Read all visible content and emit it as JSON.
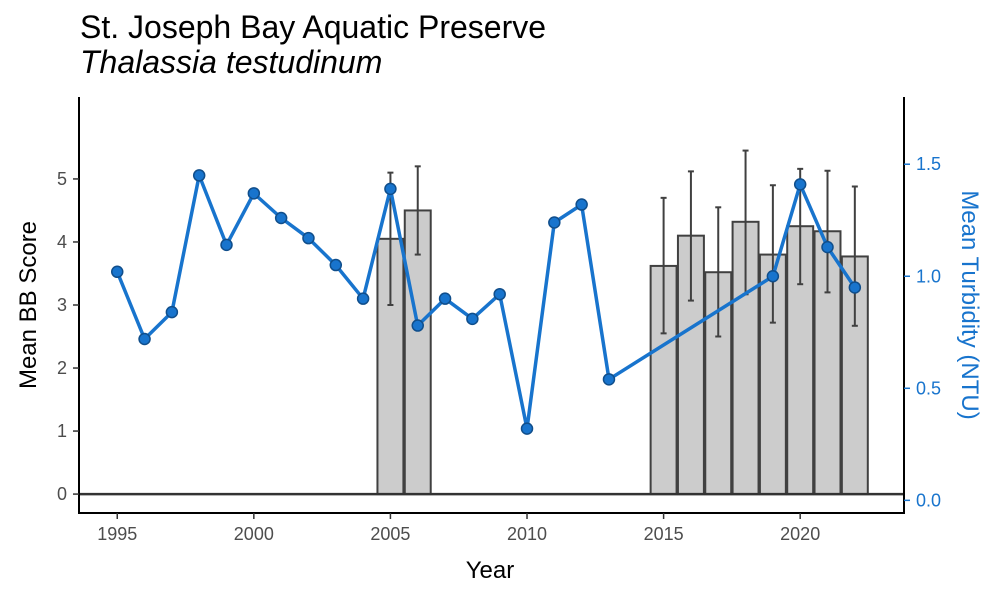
{
  "chart_data": {
    "type": "bar",
    "title": "St. Joseph Bay Aquatic Preserve",
    "subtitle": "Thalassia testudinum",
    "xlabel": "Year",
    "ylabel": "Mean BB Score",
    "y2label": "Mean Turbidity (NTU)",
    "xlim": [
      1993.6,
      2023.8
    ],
    "ylim": [
      -0.3,
      6.3
    ],
    "y2lim": [
      -0.0565,
      1.8
    ],
    "x_ticks": [
      "1995",
      "2000",
      "2005",
      "2010",
      "2015",
      "2020"
    ],
    "y_ticks": [
      "0",
      "1",
      "2",
      "3",
      "4",
      "5"
    ],
    "y2_ticks": [
      "0.0",
      "0.5",
      "1.0",
      "1.5"
    ],
    "grid": false,
    "series": [
      {
        "type": "bar",
        "axis": "left",
        "data": [
          {
            "x": 2005,
            "y": 4.05,
            "err_low": 3.0,
            "err_high": 5.1
          },
          {
            "x": 2006,
            "y": 4.5,
            "err_low": 3.8,
            "err_high": 5.2
          },
          {
            "x": 2015,
            "y": 3.62,
            "err_low": 2.55,
            "err_high": 4.7
          },
          {
            "x": 2016,
            "y": 4.1,
            "err_low": 3.07,
            "err_high": 5.12
          },
          {
            "x": 2017,
            "y": 3.52,
            "err_low": 2.5,
            "err_high": 4.55
          },
          {
            "x": 2018,
            "y": 4.32,
            "err_low": 3.17,
            "err_high": 5.45
          },
          {
            "x": 2019,
            "y": 3.8,
            "err_low": 2.72,
            "err_high": 4.9
          },
          {
            "x": 2020,
            "y": 4.25,
            "err_low": 3.33,
            "err_high": 5.16
          },
          {
            "x": 2021,
            "y": 4.17,
            "err_low": 3.2,
            "err_high": 5.13
          },
          {
            "x": 2022,
            "y": 3.77,
            "err_low": 2.67,
            "err_high": 4.88
          }
        ]
      },
      {
        "type": "line",
        "axis": "right",
        "x": [
          1995,
          1996,
          1997,
          1998,
          1999,
          2000,
          2001,
          2002,
          2003,
          2004,
          2005,
          2006,
          2007,
          2008,
          2009,
          2010,
          2011,
          2012,
          2013,
          2019,
          2020,
          2021,
          2022
        ],
        "y": [
          1.02,
          0.72,
          0.84,
          1.45,
          1.14,
          1.37,
          1.26,
          1.17,
          1.05,
          0.9,
          1.39,
          0.78,
          0.9,
          0.81,
          0.92,
          0.32,
          1.24,
          1.32,
          0.54,
          1.0,
          1.41,
          1.13,
          0.95
        ]
      }
    ]
  },
  "colors": {
    "bar_fill": "#cccccc",
    "bar_stroke": "#404040",
    "line": "#1874cd",
    "point_fill": "#1874cd",
    "point_stroke": "#104e8b",
    "axis": "#000000",
    "zero_line": "#333333",
    "right_axis_text": "#1874cd"
  }
}
